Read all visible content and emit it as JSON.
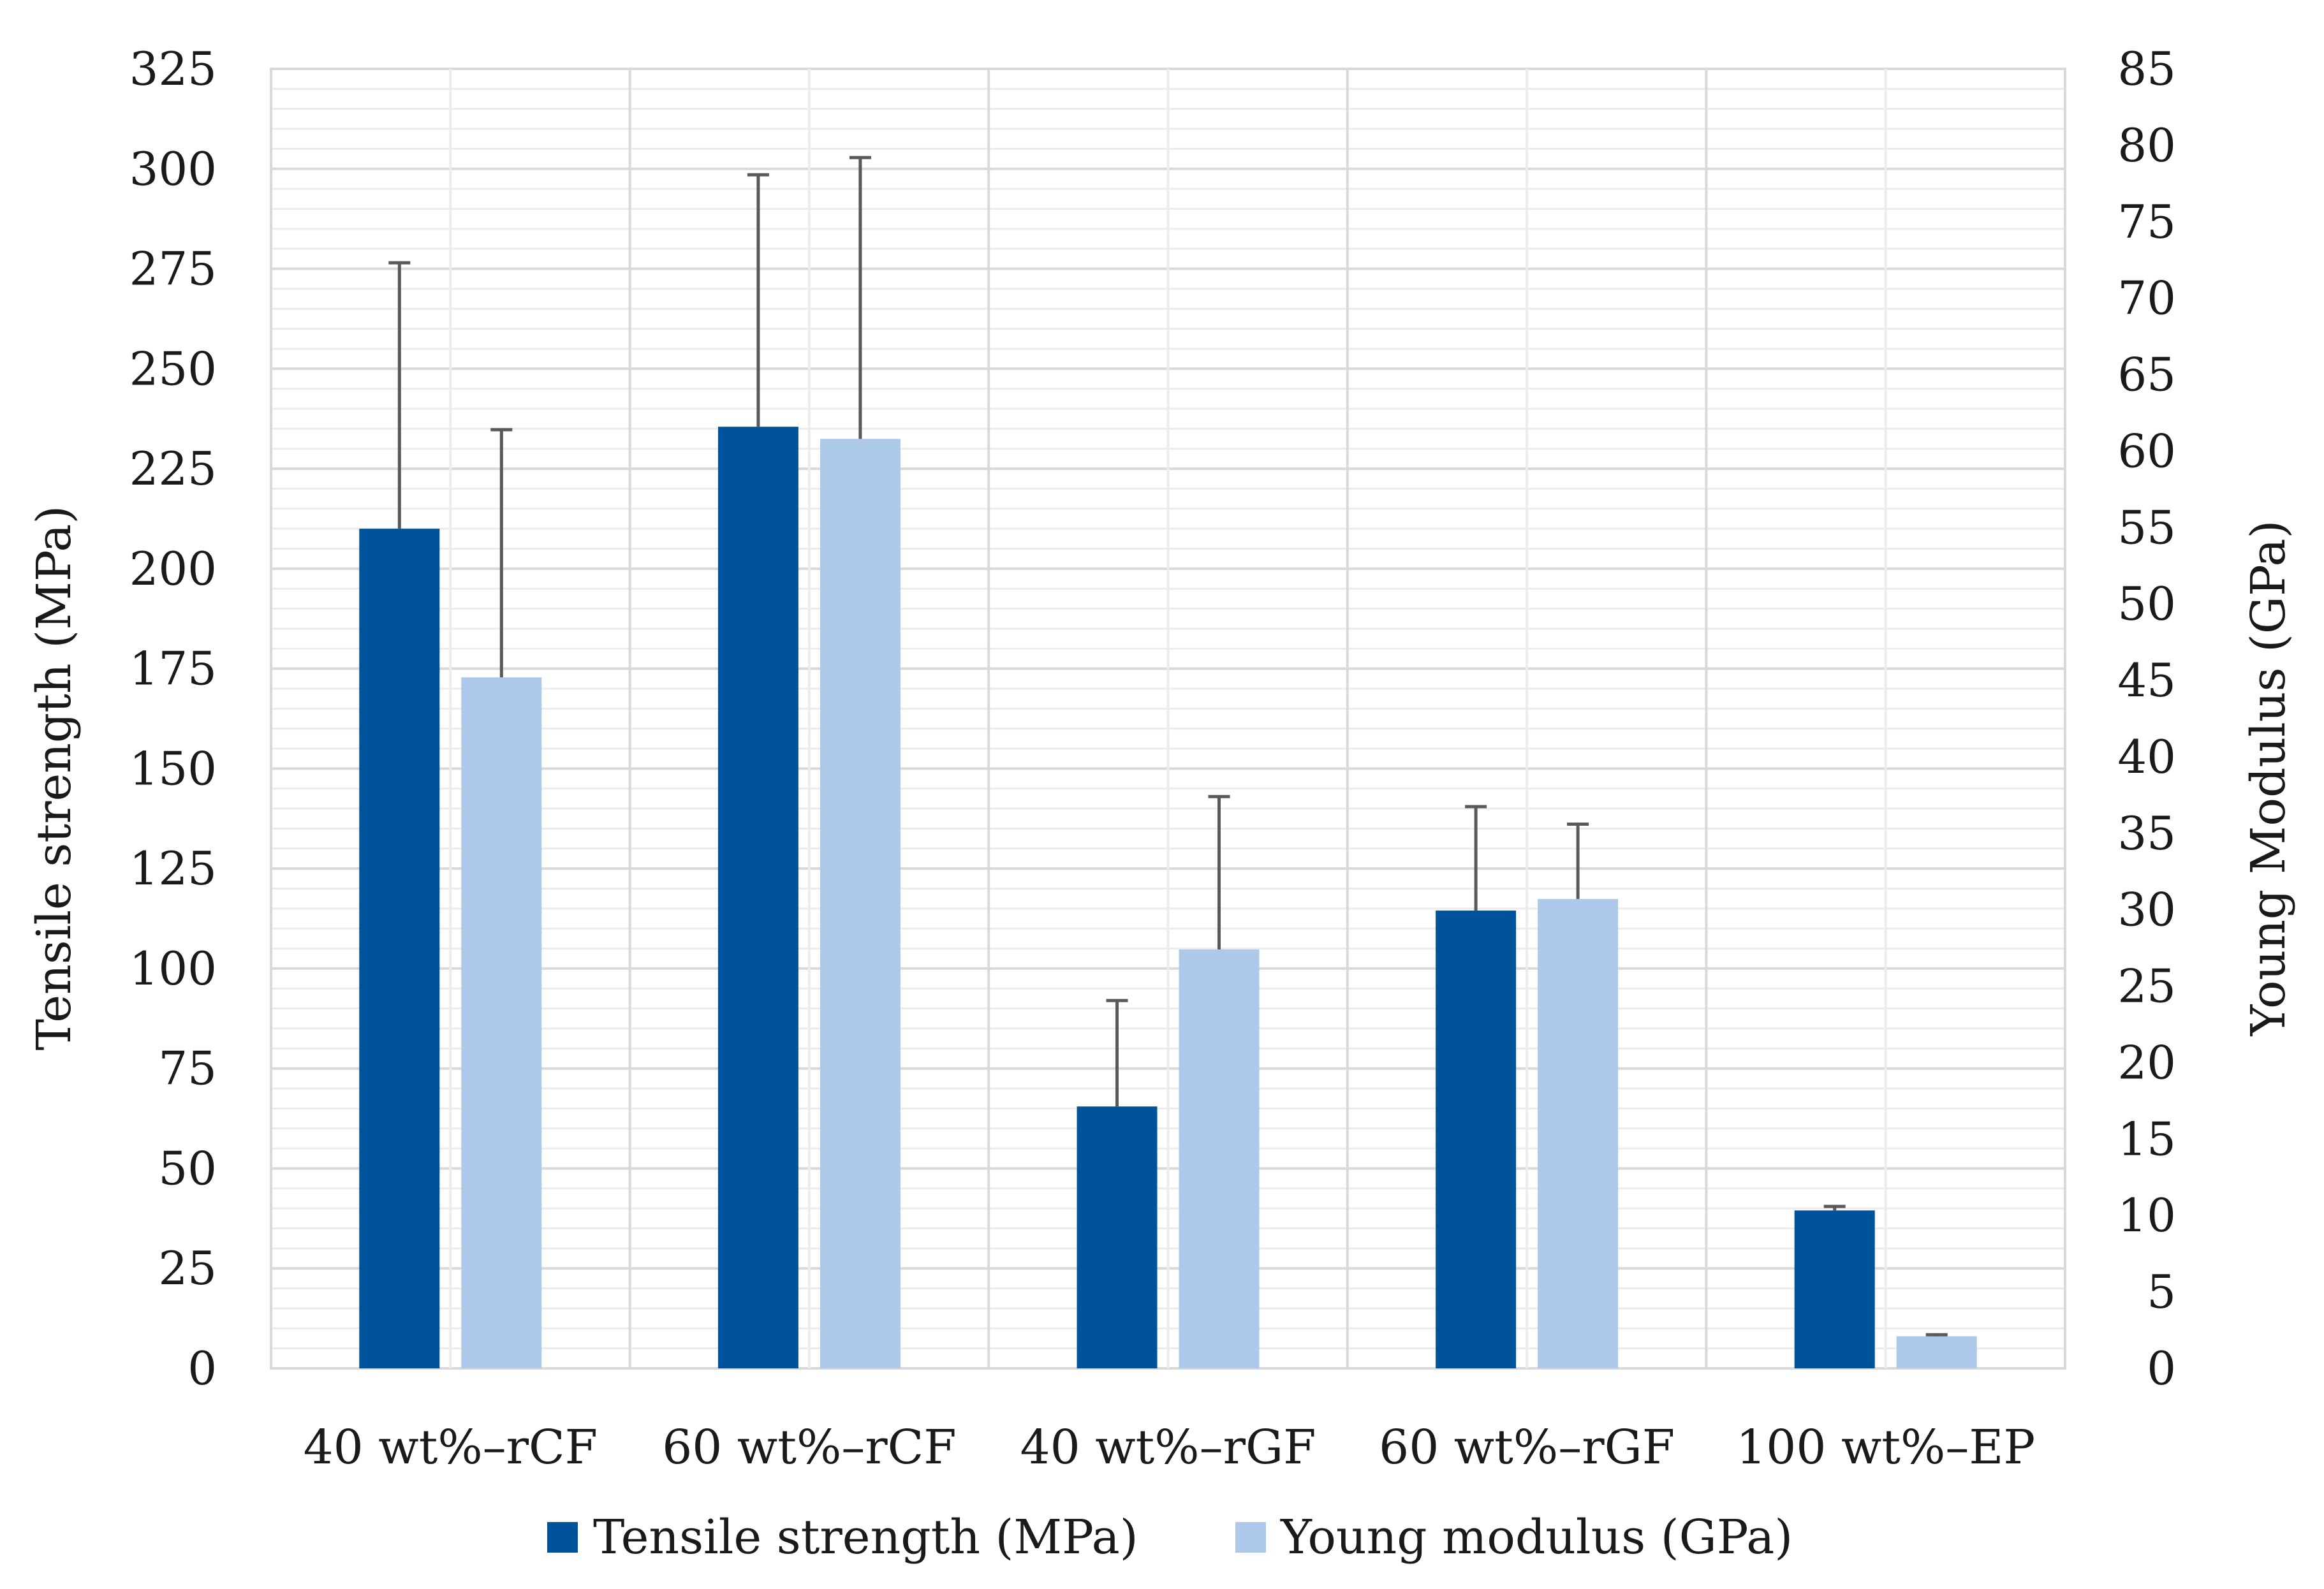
{
  "chart_data": {
    "type": "bar",
    "title": "",
    "categories": [
      "40 wt%–rCF",
      "60 wt%–rCF",
      "40 wt%–rGF",
      "60 wt%–rGF",
      "100 wt%–EP"
    ],
    "series": [
      {
        "name": "Tensile strength (MPa)",
        "axis": "left",
        "color": "#00539b",
        "values": [
          210,
          235.5,
          65.5,
          114.5,
          39.5
        ],
        "error_upper": [
          276.5,
          298.5,
          92,
          140.5,
          40.5
        ]
      },
      {
        "name": "Young modulus (GPa)",
        "axis": "right",
        "color": "#adc8e8",
        "values": [
          45.2,
          60.8,
          27.4,
          30.7,
          2.1
        ],
        "error_upper": [
          61.4,
          79.2,
          37.4,
          35.6,
          2.2
        ]
      }
    ],
    "y_left": {
      "label": "Tensile strength (MPa)",
      "lim": [
        0,
        325
      ],
      "ticks": [
        "0",
        "25",
        "50",
        "75",
        "100",
        "125",
        "150",
        "175",
        "200",
        "225",
        "250",
        "275",
        "300",
        "325"
      ]
    },
    "y_right": {
      "label": "Young Modulus (GPa)",
      "lim": [
        0,
        85
      ],
      "ticks": [
        "0",
        "5",
        "10",
        "15",
        "20",
        "25",
        "30",
        "35",
        "40",
        "45",
        "50",
        "55",
        "60",
        "65",
        "70",
        "75",
        "80",
        "85"
      ]
    },
    "xlabel": "",
    "grid": true,
    "legend": {
      "position": "bottom",
      "entries": [
        "Tensile strength (MPa)",
        "Young modulus (GPa)"
      ]
    }
  }
}
